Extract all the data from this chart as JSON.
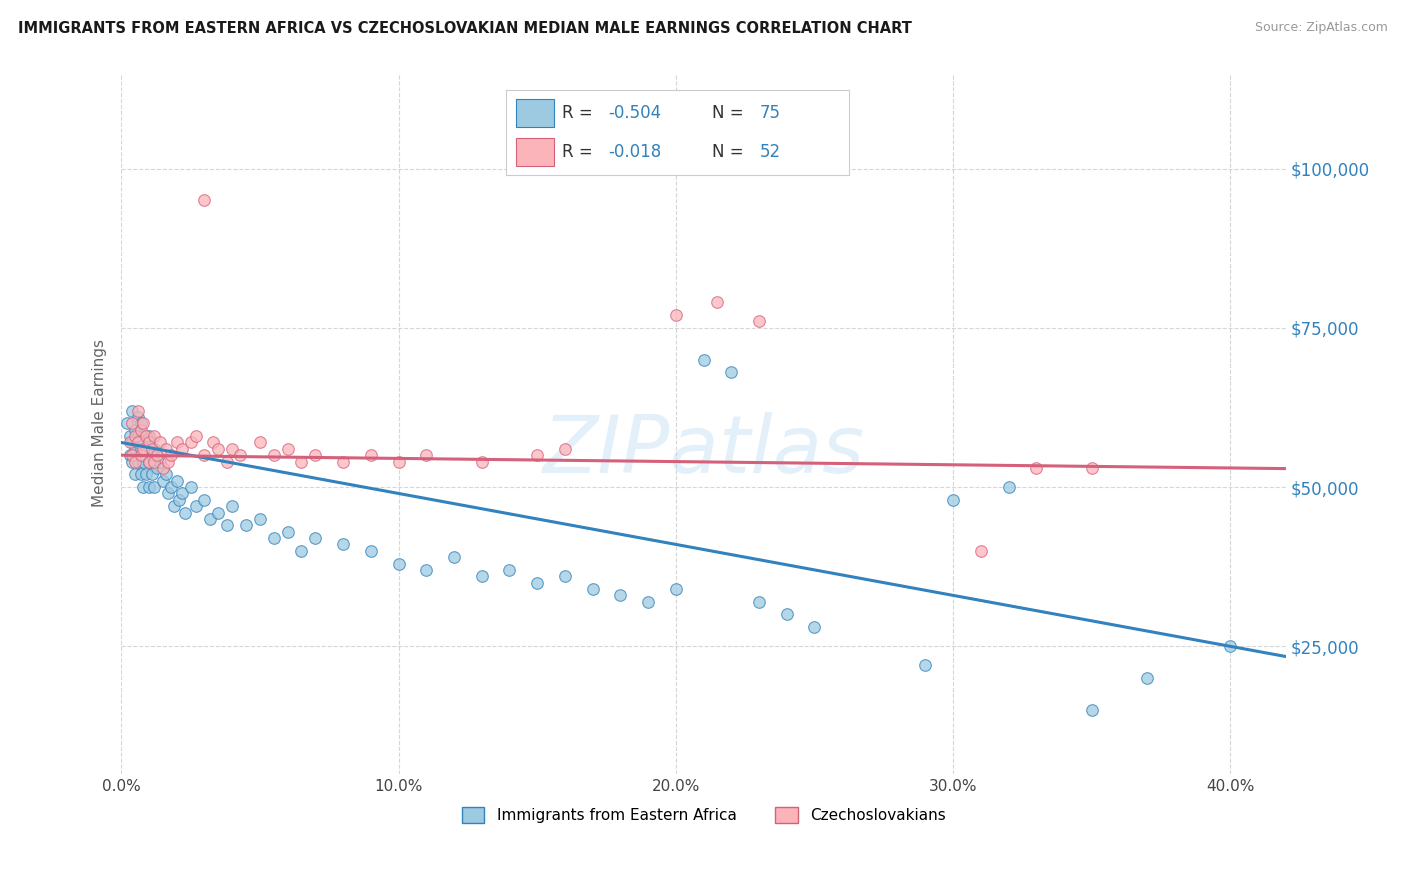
{
  "title": "IMMIGRANTS FROM EASTERN AFRICA VS CZECHOSLOVAKIAN MEDIAN MALE EARNINGS CORRELATION CHART",
  "source": "Source: ZipAtlas.com",
  "ylabel": "Median Male Earnings",
  "xlim": [
    0.0,
    0.42
  ],
  "ylim": [
    5000,
    115000
  ],
  "yticks": [
    25000,
    50000,
    75000,
    100000
  ],
  "ytick_labels": [
    "$25,000",
    "$50,000",
    "$75,000",
    "$100,000"
  ],
  "xtick_labels": [
    "0.0%",
    "10.0%",
    "20.0%",
    "30.0%",
    "40.0%"
  ],
  "xticks": [
    0.0,
    0.1,
    0.2,
    0.3,
    0.4
  ],
  "legend_label1": "Immigrants from Eastern Africa",
  "legend_label2": "Czechoslovakians",
  "R1": "-0.504",
  "N1": "75",
  "R2": "-0.018",
  "N2": "52",
  "color_blue": "#9ecae1",
  "color_pink": "#fbb4b9",
  "edge_blue": "#3182bd",
  "edge_pink": "#d4607a",
  "trend_blue": "#3182bd",
  "trend_pink": "#d4607a",
  "watermark": "ZIPatlas",
  "bg_color": "#ffffff",
  "grid_color": "#cccccc",
  "blue_scatter": [
    [
      0.002,
      60000
    ],
    [
      0.003,
      58000
    ],
    [
      0.003,
      55000
    ],
    [
      0.004,
      62000
    ],
    [
      0.004,
      57000
    ],
    [
      0.004,
      54000
    ],
    [
      0.005,
      59000
    ],
    [
      0.005,
      56000
    ],
    [
      0.005,
      52000
    ],
    [
      0.006,
      61000
    ],
    [
      0.006,
      58000
    ],
    [
      0.006,
      54000
    ],
    [
      0.007,
      60000
    ],
    [
      0.007,
      56000
    ],
    [
      0.007,
      52000
    ],
    [
      0.008,
      58000
    ],
    [
      0.008,
      54000
    ],
    [
      0.008,
      50000
    ],
    [
      0.009,
      56000
    ],
    [
      0.009,
      52000
    ],
    [
      0.01,
      58000
    ],
    [
      0.01,
      54000
    ],
    [
      0.01,
      50000
    ],
    [
      0.011,
      55000
    ],
    [
      0.011,
      52000
    ],
    [
      0.012,
      56000
    ],
    [
      0.012,
      50000
    ],
    [
      0.013,
      53000
    ],
    [
      0.014,
      54000
    ],
    [
      0.015,
      51000
    ],
    [
      0.016,
      52000
    ],
    [
      0.017,
      49000
    ],
    [
      0.018,
      50000
    ],
    [
      0.019,
      47000
    ],
    [
      0.02,
      51000
    ],
    [
      0.021,
      48000
    ],
    [
      0.022,
      49000
    ],
    [
      0.023,
      46000
    ],
    [
      0.025,
      50000
    ],
    [
      0.027,
      47000
    ],
    [
      0.03,
      48000
    ],
    [
      0.032,
      45000
    ],
    [
      0.035,
      46000
    ],
    [
      0.038,
      44000
    ],
    [
      0.04,
      47000
    ],
    [
      0.045,
      44000
    ],
    [
      0.05,
      45000
    ],
    [
      0.055,
      42000
    ],
    [
      0.06,
      43000
    ],
    [
      0.065,
      40000
    ],
    [
      0.07,
      42000
    ],
    [
      0.08,
      41000
    ],
    [
      0.09,
      40000
    ],
    [
      0.1,
      38000
    ],
    [
      0.11,
      37000
    ],
    [
      0.12,
      39000
    ],
    [
      0.13,
      36000
    ],
    [
      0.14,
      37000
    ],
    [
      0.15,
      35000
    ],
    [
      0.16,
      36000
    ],
    [
      0.17,
      34000
    ],
    [
      0.18,
      33000
    ],
    [
      0.19,
      32000
    ],
    [
      0.2,
      34000
    ],
    [
      0.21,
      70000
    ],
    [
      0.22,
      68000
    ],
    [
      0.23,
      32000
    ],
    [
      0.24,
      30000
    ],
    [
      0.25,
      28000
    ],
    [
      0.29,
      22000
    ],
    [
      0.3,
      48000
    ],
    [
      0.32,
      50000
    ],
    [
      0.35,
      15000
    ],
    [
      0.37,
      20000
    ],
    [
      0.4,
      25000
    ]
  ],
  "pink_scatter": [
    [
      0.003,
      57000
    ],
    [
      0.004,
      60000
    ],
    [
      0.004,
      55000
    ],
    [
      0.005,
      58000
    ],
    [
      0.005,
      54000
    ],
    [
      0.006,
      62000
    ],
    [
      0.006,
      57000
    ],
    [
      0.007,
      59000
    ],
    [
      0.007,
      55000
    ],
    [
      0.008,
      60000
    ],
    [
      0.008,
      56000
    ],
    [
      0.009,
      58000
    ],
    [
      0.01,
      57000
    ],
    [
      0.01,
      54000
    ],
    [
      0.011,
      56000
    ],
    [
      0.012,
      58000
    ],
    [
      0.012,
      54000
    ],
    [
      0.013,
      55000
    ],
    [
      0.014,
      57000
    ],
    [
      0.015,
      53000
    ],
    [
      0.016,
      56000
    ],
    [
      0.017,
      54000
    ],
    [
      0.018,
      55000
    ],
    [
      0.02,
      57000
    ],
    [
      0.022,
      56000
    ],
    [
      0.025,
      57000
    ],
    [
      0.027,
      58000
    ],
    [
      0.03,
      55000
    ],
    [
      0.033,
      57000
    ],
    [
      0.035,
      56000
    ],
    [
      0.038,
      54000
    ],
    [
      0.04,
      56000
    ],
    [
      0.043,
      55000
    ],
    [
      0.05,
      57000
    ],
    [
      0.055,
      55000
    ],
    [
      0.06,
      56000
    ],
    [
      0.065,
      54000
    ],
    [
      0.07,
      55000
    ],
    [
      0.08,
      54000
    ],
    [
      0.09,
      55000
    ],
    [
      0.1,
      54000
    ],
    [
      0.11,
      55000
    ],
    [
      0.13,
      54000
    ],
    [
      0.15,
      55000
    ],
    [
      0.16,
      56000
    ],
    [
      0.03,
      95000
    ],
    [
      0.2,
      77000
    ],
    [
      0.215,
      79000
    ],
    [
      0.23,
      76000
    ],
    [
      0.31,
      40000
    ],
    [
      0.33,
      53000
    ],
    [
      0.35,
      53000
    ]
  ]
}
